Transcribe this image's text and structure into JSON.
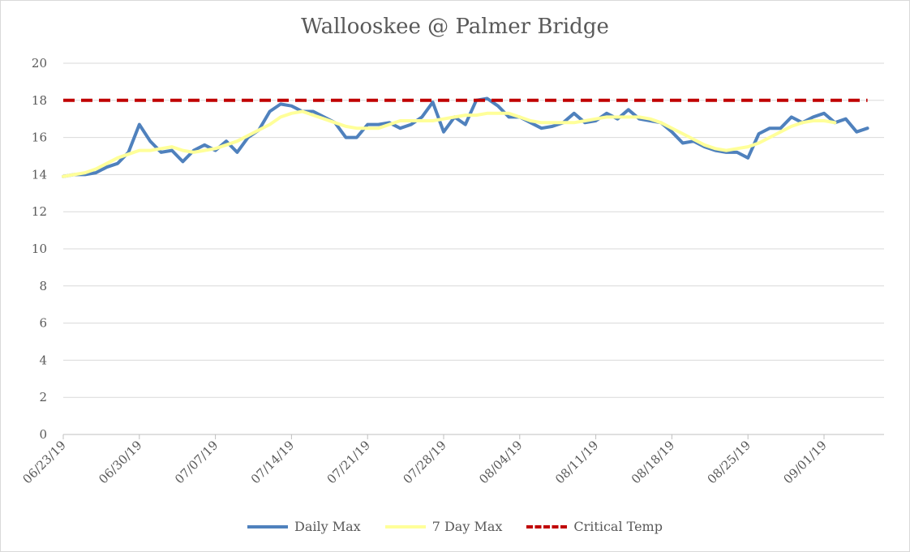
{
  "chart_data": {
    "type": "line",
    "title": "Wallooskee @ Palmer Bridge",
    "xlabel": "",
    "ylabel": "",
    "ylim": [
      0,
      20
    ],
    "yticks": [
      0,
      2,
      4,
      6,
      8,
      10,
      12,
      14,
      16,
      18,
      20
    ],
    "xticks": [
      "06/23/19",
      "06/30/19",
      "07/07/19",
      "07/14/19",
      "07/21/19",
      "07/28/19",
      "08/04/19",
      "08/11/19",
      "08/18/19",
      "08/25/19",
      "09/01/19"
    ],
    "x_start": "06/23/19",
    "grid": true,
    "legend_position": "bottom",
    "series": [
      {
        "name": "Daily Max",
        "color": "#4f81bd",
        "values": [
          13.9,
          14.0,
          14.0,
          14.1,
          14.4,
          14.6,
          15.2,
          16.7,
          15.8,
          15.2,
          15.3,
          14.7,
          15.3,
          15.6,
          15.3,
          15.8,
          15.2,
          16.0,
          16.4,
          17.4,
          17.8,
          17.7,
          17.4,
          17.4,
          17.1,
          16.8,
          16.0,
          16.0,
          16.7,
          16.7,
          16.8,
          16.5,
          16.7,
          17.1,
          17.9,
          16.3,
          17.1,
          16.7,
          18.0,
          18.1,
          17.7,
          17.1,
          17.1,
          16.8,
          16.5,
          16.6,
          16.8,
          17.3,
          16.8,
          16.9,
          17.3,
          17.0,
          17.5,
          17.0,
          16.9,
          16.8,
          16.3,
          15.7,
          15.8,
          15.5,
          15.3,
          15.2,
          15.2,
          14.9,
          16.2,
          16.5,
          16.5,
          17.1,
          16.8,
          17.1,
          17.3,
          16.8,
          17.0,
          16.3,
          16.5
        ]
      },
      {
        "name": "7 Day Max",
        "color": "#ffff99",
        "values": [
          13.9,
          14.0,
          14.1,
          14.3,
          14.6,
          14.9,
          15.1,
          15.3,
          15.3,
          15.4,
          15.5,
          15.3,
          15.2,
          15.3,
          15.4,
          15.6,
          15.8,
          16.1,
          16.4,
          16.7,
          17.1,
          17.3,
          17.4,
          17.2,
          17.0,
          16.8,
          16.6,
          16.5,
          16.5,
          16.5,
          16.7,
          16.9,
          16.9,
          16.9,
          16.9,
          17.0,
          17.1,
          17.2,
          17.2,
          17.3,
          17.3,
          17.3,
          17.1,
          16.9,
          16.8,
          16.8,
          16.8,
          16.8,
          16.9,
          17.0,
          17.1,
          17.1,
          17.1,
          17.1,
          17.0,
          16.8,
          16.5,
          16.2,
          15.9,
          15.6,
          15.4,
          15.3,
          15.4,
          15.5,
          15.7,
          16.0,
          16.3,
          16.6,
          16.8,
          16.9,
          16.9,
          16.8
        ]
      },
      {
        "name": "Critical Temp",
        "color": "#c00000",
        "values": [
          18,
          18,
          18,
          18,
          18,
          18,
          18,
          18,
          18,
          18,
          18,
          18,
          18,
          18,
          18,
          18,
          18,
          18,
          18,
          18,
          18,
          18,
          18,
          18,
          18,
          18,
          18,
          18,
          18,
          18,
          18,
          18,
          18,
          18,
          18,
          18,
          18,
          18,
          18,
          18,
          18,
          18,
          18,
          18,
          18,
          18,
          18,
          18,
          18,
          18,
          18,
          18,
          18,
          18,
          18,
          18,
          18,
          18,
          18,
          18,
          18,
          18,
          18,
          18,
          18,
          18,
          18,
          18,
          18,
          18,
          18,
          18,
          18,
          18,
          18
        ]
      }
    ]
  }
}
